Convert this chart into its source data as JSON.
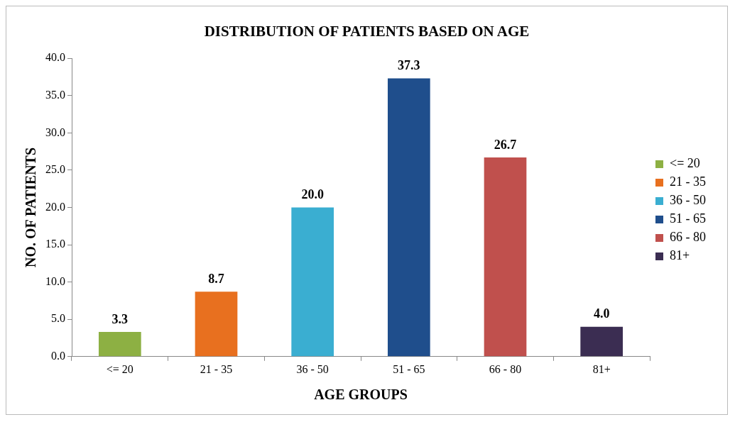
{
  "chart_data": {
    "type": "bar",
    "title": "DISTRIBUTION OF PATIENTS BASED ON AGE",
    "xlabel": "AGE GROUPS",
    "ylabel": "NO. OF PATIENTS",
    "categories": [
      "<= 20",
      "21 - 35",
      "36 - 50",
      "51 - 65",
      "66 - 80",
      "81+"
    ],
    "series": [
      {
        "name": "<= 20",
        "color": "#8db043",
        "values": [
          3.3,
          null,
          null,
          null,
          null,
          null
        ],
        "value_labels": [
          "3.3",
          null,
          null,
          null,
          null,
          null
        ]
      },
      {
        "name": "21 - 35",
        "color": "#e8701f",
        "values": [
          null,
          8.7,
          null,
          null,
          null,
          null
        ],
        "value_labels": [
          null,
          "8.7",
          null,
          null,
          null,
          null
        ]
      },
      {
        "name": "36 - 50",
        "color": "#3aaed1",
        "values": [
          null,
          null,
          20.0,
          null,
          null,
          null
        ],
        "value_labels": [
          null,
          null,
          "20.0",
          null,
          null,
          null
        ]
      },
      {
        "name": "51 - 65",
        "color": "#1f4e8c",
        "values": [
          null,
          null,
          null,
          37.3,
          null,
          null
        ],
        "value_labels": [
          null,
          null,
          null,
          "37.3",
          null,
          null
        ]
      },
      {
        "name": "66 - 80",
        "color": "#c0504d",
        "values": [
          null,
          null,
          null,
          null,
          26.7,
          null
        ],
        "value_labels": [
          null,
          null,
          null,
          null,
          "26.7",
          null
        ]
      },
      {
        "name": "81+",
        "color": "#3b2d52",
        "values": [
          null,
          null,
          null,
          null,
          null,
          4.0
        ],
        "value_labels": [
          null,
          null,
          null,
          null,
          null,
          "4.0"
        ]
      }
    ],
    "ylim": [
      0,
      40
    ],
    "yticks": [
      {
        "value": 0,
        "label": "0.0"
      },
      {
        "value": 5,
        "label": "5.0"
      },
      {
        "value": 10,
        "label": "10.0"
      },
      {
        "value": 15,
        "label": "15.0"
      },
      {
        "value": 20,
        "label": "20.0"
      },
      {
        "value": 25,
        "label": "25.0"
      },
      {
        "value": 30,
        "label": "30.0"
      },
      {
        "value": 35,
        "label": "35.0"
      },
      {
        "value": 40,
        "label": "40.0"
      }
    ],
    "grid": false,
    "legend": "right"
  }
}
